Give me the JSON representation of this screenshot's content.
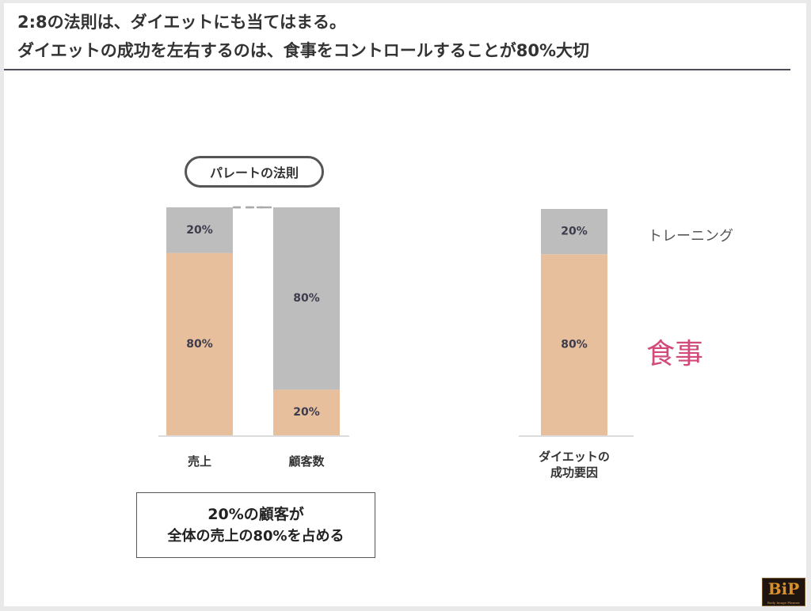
{
  "title": {
    "line1": "2:8の法則は、ダイエットにも当てはまる。",
    "line2": "ダイエットの成功を左右するのは、食事をコントロールすることが80%大切"
  },
  "pareto_label": "パレートの法則",
  "callout": {
    "line1": "20%の顧客が",
    "line2": "全体の売上の80%を占める"
  },
  "side_labels": {
    "training": "トレーニング",
    "meal": "食事"
  },
  "logo": {
    "text": "BiP",
    "subtext": "Body Image Planner"
  },
  "colors": {
    "gray_segment": "#bdbdbd",
    "tan_segment": "#e8bf9c",
    "meal_accent": "#d24a7a",
    "connector": "#aaaaaa"
  },
  "chart_data": [
    {
      "type": "bar",
      "stacked": true,
      "categories": [
        "売上",
        "顧客数"
      ],
      "series": [
        {
          "values": [
            80,
            20
          ],
          "color": "#e8bf9c"
        },
        {
          "values": [
            20,
            80
          ],
          "color": "#bdbdbd"
        }
      ],
      "data_labels": [
        [
          "80%",
          "20%"
        ],
        [
          "20%",
          "80%"
        ]
      ],
      "ylim": [
        0,
        100
      ],
      "connectors": "dashed"
    },
    {
      "type": "bar",
      "stacked": true,
      "categories": [
        "ダイエットの\n成功要因"
      ],
      "series": [
        {
          "name": "食事",
          "values": [
            80
          ],
          "color": "#e8bf9c"
        },
        {
          "name": "トレーニング",
          "values": [
            20
          ],
          "color": "#bdbdbd"
        }
      ],
      "data_labels": [
        [
          "80%"
        ],
        [
          "20%"
        ]
      ],
      "ylim": [
        0,
        100
      ]
    }
  ]
}
